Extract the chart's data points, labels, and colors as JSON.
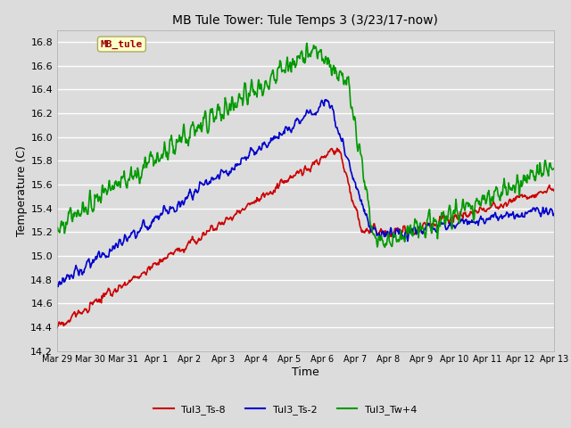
{
  "title": "MB Tule Tower: Tule Temps 3 (3/23/17-now)",
  "xlabel": "Time",
  "ylabel": "Temperature (C)",
  "background_color": "#dcdcdc",
  "grid_color": "white",
  "series": {
    "Tul3_Ts-8": {
      "color": "#cc0000",
      "lw": 1.2
    },
    "Tul3_Ts-2": {
      "color": "#0000cc",
      "lw": 1.2
    },
    "Tul3_Tw+4": {
      "color": "#009900",
      "lw": 1.2
    }
  },
  "xtick_labels": [
    "Mar 29",
    "Mar 30",
    "Mar 31",
    "Apr 1",
    "Apr 2",
    "Apr 3",
    "Apr 4",
    "Apr 5",
    "Apr 6",
    "Apr 7",
    "Apr 8",
    "Apr 9",
    "Apr 10",
    "Apr 11",
    "Apr 12",
    "Apr 13"
  ],
  "yticks": [
    14.2,
    14.4,
    14.6,
    14.8,
    15.0,
    15.2,
    15.4,
    15.6,
    15.8,
    16.0,
    16.2,
    16.4,
    16.6,
    16.8
  ],
  "ylim": [
    14.2,
    16.9
  ],
  "watermark_text": "MB_tule",
  "watermark_bg": "#ffffcc",
  "watermark_fg": "#990000",
  "legend_items": [
    "Tul3_Ts-8",
    "Tul3_Ts-2",
    "Tul3_Tw+4"
  ],
  "legend_colors": [
    "#cc0000",
    "#0000cc",
    "#009900"
  ]
}
